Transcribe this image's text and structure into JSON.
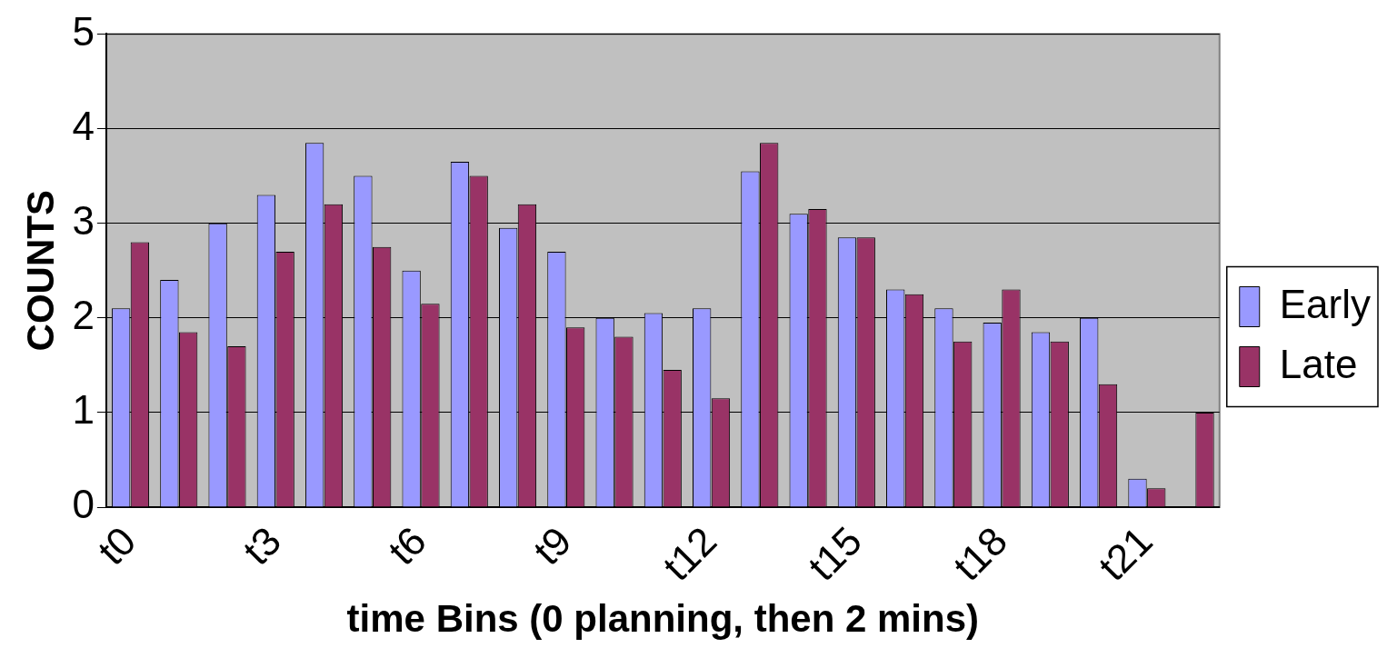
{
  "chart_data": {
    "type": "bar",
    "xlabel": "time Bins (0 planning, then 2 mins)",
    "ylabel": "COUNTS",
    "categories": [
      "t0",
      null,
      null,
      "t3",
      null,
      null,
      "t6",
      null,
      null,
      "t9",
      null,
      null,
      "t12",
      null,
      null,
      "t15",
      null,
      null,
      "t18",
      null,
      null,
      "t21",
      null
    ],
    "series": [
      {
        "name": "Early",
        "color": "#9999ff",
        "values": [
          2.1,
          2.4,
          3.0,
          3.3,
          3.85,
          3.5,
          2.5,
          3.65,
          2.95,
          2.7,
          2.0,
          2.05,
          2.1,
          3.55,
          3.1,
          2.85,
          2.3,
          2.1,
          1.95,
          1.85,
          2.0,
          0.3,
          0
        ]
      },
      {
        "name": "Late",
        "color": "#993366",
        "values": [
          2.8,
          1.85,
          1.7,
          2.7,
          3.2,
          2.75,
          2.15,
          3.5,
          3.2,
          1.9,
          1.8,
          1.45,
          1.15,
          3.85,
          3.15,
          2.85,
          2.25,
          1.75,
          2.3,
          1.75,
          1.3,
          0.2,
          1.0
        ]
      }
    ],
    "ylim": [
      0,
      5
    ],
    "yticks": [
      0,
      1,
      2,
      3,
      4,
      5
    ],
    "grid": "y",
    "legend": "right"
  }
}
